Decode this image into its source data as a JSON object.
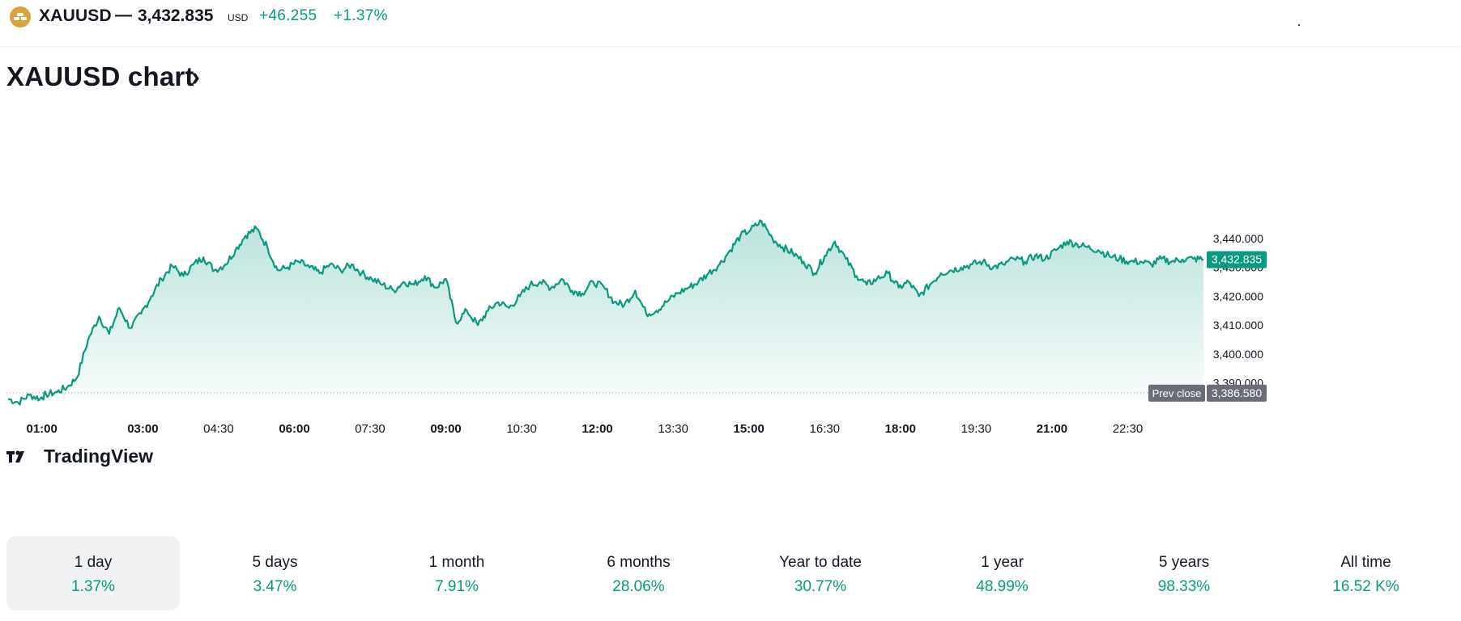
{
  "header": {
    "symbol": "XAUUSD",
    "separator": "—",
    "price": "3,432.835",
    "currency": "USD",
    "change": "+46.255",
    "change_pct": "+1.37%",
    "logo_icon": "gold-bars-icon",
    "positive_color": "#089981"
  },
  "title": {
    "text": "XAUUSD chart",
    "arrow": "›"
  },
  "watermark": {
    "text": "TradingView"
  },
  "chart_data": {
    "type": "area",
    "title": "",
    "xlabel": "",
    "ylabel": "",
    "line_color": "#089981",
    "x_ticks": [
      {
        "label": "01:00",
        "bold": true
      },
      {
        "label": "03:00",
        "bold": true
      },
      {
        "label": "04:30",
        "bold": false
      },
      {
        "label": "06:00",
        "bold": true
      },
      {
        "label": "07:30",
        "bold": false
      },
      {
        "label": "09:00",
        "bold": true
      },
      {
        "label": "10:30",
        "bold": false
      },
      {
        "label": "12:00",
        "bold": true
      },
      {
        "label": "13:30",
        "bold": false
      },
      {
        "label": "15:00",
        "bold": true
      },
      {
        "label": "16:30",
        "bold": false
      },
      {
        "label": "18:00",
        "bold": true
      },
      {
        "label": "19:30",
        "bold": false
      },
      {
        "label": "21:00",
        "bold": true
      },
      {
        "label": "22:30",
        "bold": false
      }
    ],
    "y_ticks": [
      "3,440.000",
      "3,430.000",
      "3,420.000",
      "3,410.000",
      "3,400.000",
      "3,390.000"
    ],
    "y_tick_values": [
      3440,
      3430,
      3420,
      3410,
      3400,
      3390
    ],
    "ylim": [
      3384,
      3461
    ],
    "xlim": [
      "00:18",
      "24:00"
    ],
    "prev_close": {
      "label": "Prev close",
      "value": 3386.58,
      "text": "3,386.580"
    },
    "last_price": {
      "value": 3432.835,
      "text": "3,432.835"
    },
    "series": [
      {
        "x": [
          "00:20",
          "00:32",
          "00:45",
          "00:58",
          "01:05",
          "01:18",
          "01:30",
          "01:42",
          "01:55",
          "02:08",
          "02:20",
          "02:32",
          "02:45",
          "02:58",
          "03:10",
          "03:22",
          "03:35",
          "03:48",
          "04:00",
          "04:12",
          "04:25",
          "04:38",
          "04:50",
          "05:02",
          "05:15",
          "05:28",
          "05:40",
          "05:52",
          "06:05",
          "06:18",
          "06:30",
          "06:42",
          "06:55",
          "07:08",
          "07:20",
          "07:32",
          "07:45",
          "07:58",
          "08:10",
          "08:22",
          "08:35",
          "08:48",
          "09:00",
          "09:12",
          "09:25",
          "09:38",
          "09:50",
          "10:02",
          "10:15",
          "10:28",
          "10:40",
          "10:52",
          "11:05",
          "11:18",
          "11:30",
          "11:42",
          "11:55",
          "12:08",
          "12:20",
          "12:32",
          "12:45",
          "12:58",
          "13:10",
          "13:22",
          "13:35",
          "13:48",
          "14:00",
          "14:12",
          "14:25",
          "14:38",
          "14:50",
          "15:02",
          "15:15",
          "15:28",
          "15:40",
          "15:52",
          "16:05",
          "16:18",
          "16:30",
          "16:42",
          "16:55",
          "17:08",
          "17:20",
          "17:32",
          "17:45",
          "17:58",
          "18:10",
          "18:22",
          "18:35",
          "18:48",
          "19:00",
          "19:12",
          "19:25",
          "19:38",
          "19:50",
          "20:02",
          "20:15",
          "20:28",
          "20:40",
          "20:52",
          "21:05",
          "21:18",
          "21:30",
          "21:42",
          "21:55",
          "22:08",
          "22:20",
          "22:32",
          "22:45",
          "22:58",
          "23:10",
          "23:22",
          "23:35",
          "23:48",
          "24:00"
        ],
        "values": [
          3384.5,
          3383.2,
          3385.8,
          3384.6,
          3386.0,
          3386.8,
          3388.5,
          3392.0,
          3405.0,
          3413.0,
          3407.0,
          3416.0,
          3409.0,
          3414.0,
          3420.0,
          3426.0,
          3430.5,
          3427.0,
          3431.0,
          3433.5,
          3429.0,
          3431.0,
          3436.0,
          3441.0,
          3443.5,
          3437.0,
          3429.0,
          3430.0,
          3432.0,
          3430.0,
          3428.0,
          3431.0,
          3429.0,
          3431.0,
          3428.0,
          3426.0,
          3424.0,
          3422.0,
          3425.0,
          3424.0,
          3427.0,
          3423.0,
          3426.0,
          3411.0,
          3415.0,
          3410.0,
          3415.0,
          3418.0,
          3416.0,
          3420.0,
          3424.0,
          3425.0,
          3423.0,
          3426.0,
          3422.0,
          3421.0,
          3425.0,
          3423.0,
          3418.0,
          3417.0,
          3422.0,
          3414.0,
          3415.0,
          3418.0,
          3421.0,
          3423.0,
          3425.0,
          3428.0,
          3431.0,
          3436.0,
          3441.0,
          3443.0,
          3446.0,
          3440.0,
          3437.0,
          3435.0,
          3432.0,
          3428.0,
          3434.0,
          3439.0,
          3433.0,
          3427.0,
          3424.0,
          3426.0,
          3428.0,
          3423.0,
          3425.0,
          3420.0,
          3424.0,
          3428.0,
          3429.0,
          3430.0,
          3431.0,
          3432.0,
          3430.0,
          3431.0,
          3433.0,
          3432.0,
          3434.0,
          3433.0,
          3436.0,
          3439.0,
          3438.0,
          3437.0,
          3436.0,
          3434.0,
          3433.0,
          3432.0,
          3432.0,
          3431.0,
          3433.0,
          3432.0,
          3432.8,
          3433.0,
          3432.835
        ]
      }
    ]
  },
  "periods": [
    {
      "label": "1 day",
      "value": "1.37%",
      "active": true
    },
    {
      "label": "5 days",
      "value": "3.47%",
      "active": false
    },
    {
      "label": "1 month",
      "value": "7.91%",
      "active": false
    },
    {
      "label": "6 months",
      "value": "28.06%",
      "active": false
    },
    {
      "label": "Year to date",
      "value": "30.77%",
      "active": false
    },
    {
      "label": "1 year",
      "value": "48.99%",
      "active": false
    },
    {
      "label": "5 years",
      "value": "98.33%",
      "active": false
    },
    {
      "label": "All time",
      "value": "16.52 K%",
      "active": false
    }
  ]
}
